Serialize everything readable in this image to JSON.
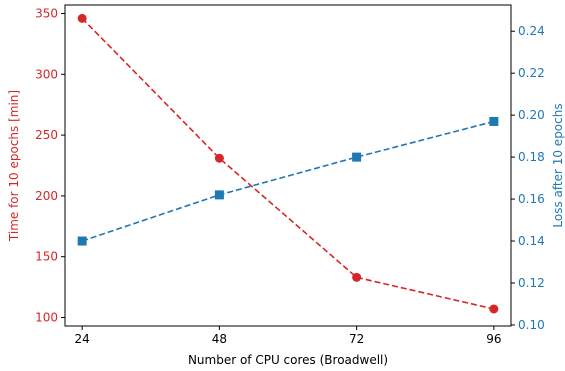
{
  "chart_data": {
    "type": "line",
    "xlabel": "Number of CPU cores (Broadwell)",
    "x": [
      24,
      48,
      72,
      96
    ],
    "xticks": [
      "24",
      "48",
      "72",
      "96"
    ],
    "grid": false,
    "legend": "none",
    "left_axis": {
      "label": "Time for 10 epochs [min]",
      "range": [
        93,
        357
      ],
      "ticks": [
        100,
        150,
        200,
        250,
        300,
        350
      ],
      "tick_labels": [
        "100",
        "150",
        "200",
        "250",
        "300",
        "350"
      ],
      "color": "#d62728"
    },
    "right_axis": {
      "label": "Loss after 10 epochs",
      "range": [
        0.0995,
        0.2525
      ],
      "ticks": [
        0.1,
        0.12,
        0.14,
        0.16,
        0.18,
        0.2,
        0.22,
        0.24
      ],
      "tick_labels": [
        "0.10",
        "0.12",
        "0.14",
        "0.16",
        "0.18",
        "0.20",
        "0.22",
        "0.24"
      ],
      "color": "#1f77b4"
    },
    "series": [
      {
        "axis": "left",
        "values": [
          346,
          231,
          133,
          107
        ],
        "marker": "circle",
        "linestyle": "dashed",
        "color": "#d62728"
      },
      {
        "axis": "right",
        "values": [
          0.14,
          0.162,
          0.18,
          0.197
        ],
        "marker": "square",
        "linestyle": "dashed",
        "color": "#1f77b4"
      }
    ]
  }
}
